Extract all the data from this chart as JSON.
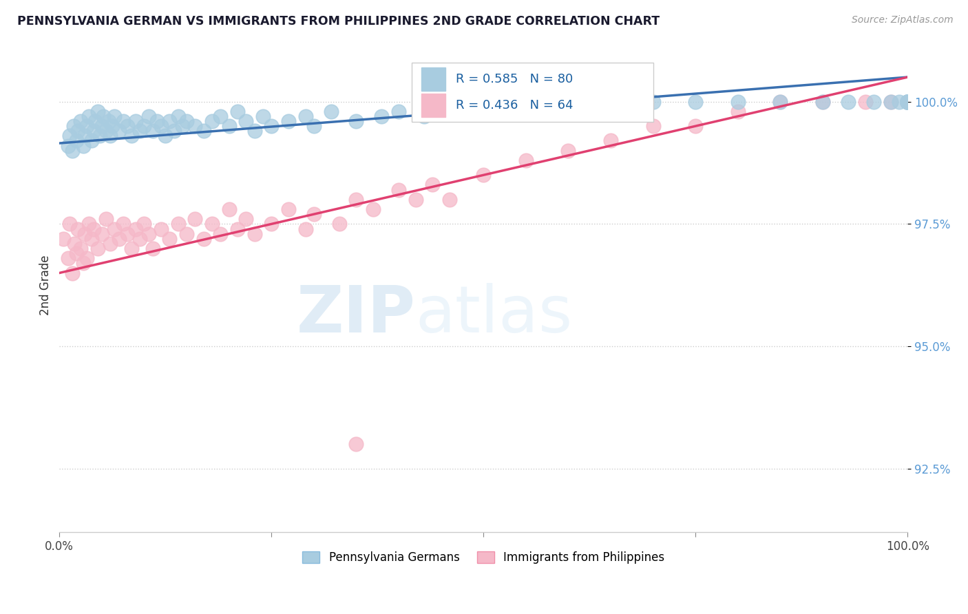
{
  "title": "PENNSYLVANIA GERMAN VS IMMIGRANTS FROM PHILIPPINES 2ND GRADE CORRELATION CHART",
  "source": "Source: ZipAtlas.com",
  "ylabel": "2nd Grade",
  "ylim": [
    91.2,
    101.3
  ],
  "xlim": [
    0.0,
    100.0
  ],
  "yticks": [
    92.5,
    95.0,
    97.5,
    100.0
  ],
  "ytick_labels": [
    "92.5%",
    "95.0%",
    "97.5%",
    "100.0%"
  ],
  "blue_R": 0.585,
  "blue_N": 80,
  "pink_R": 0.436,
  "pink_N": 64,
  "blue_color": "#a8cce0",
  "pink_color": "#f5b8c8",
  "blue_line_color": "#3a70b0",
  "pink_line_color": "#e04070",
  "legend1": "Pennsylvania Germans",
  "legend2": "Immigrants from Philippines",
  "blue_line_x0": 0,
  "blue_line_y0": 99.15,
  "blue_line_x1": 100,
  "blue_line_y1": 100.5,
  "pink_line_x0": 0,
  "pink_line_y0": 96.5,
  "pink_line_x1": 100,
  "pink_line_y1": 100.5,
  "blue_x": [
    1.0,
    1.2,
    1.5,
    1.7,
    2.0,
    2.2,
    2.5,
    2.8,
    3.0,
    3.2,
    3.5,
    3.8,
    4.0,
    4.2,
    4.5,
    4.8,
    5.0,
    5.2,
    5.5,
    5.8,
    6.0,
    6.2,
    6.5,
    7.0,
    7.5,
    8.0,
    8.5,
    9.0,
    9.5,
    10.0,
    10.5,
    11.0,
    11.5,
    12.0,
    12.5,
    13.0,
    13.5,
    14.0,
    14.5,
    15.0,
    16.0,
    17.0,
    18.0,
    19.0,
    20.0,
    21.0,
    22.0,
    23.0,
    24.0,
    25.0,
    27.0,
    29.0,
    30.0,
    32.0,
    35.0,
    38.0,
    40.0,
    43.0,
    46.0,
    50.0,
    55.0,
    60.0,
    65.0,
    70.0,
    75.0,
    80.0,
    85.0,
    90.0,
    93.0,
    96.0,
    98.0,
    99.0,
    100.0,
    100.0,
    100.0,
    100.0,
    100.0,
    100.0,
    100.0,
    100.0
  ],
  "blue_y": [
    99.1,
    99.3,
    99.0,
    99.5,
    99.2,
    99.4,
    99.6,
    99.1,
    99.3,
    99.5,
    99.7,
    99.2,
    99.4,
    99.6,
    99.8,
    99.3,
    99.5,
    99.7,
    99.4,
    99.6,
    99.3,
    99.5,
    99.7,
    99.4,
    99.6,
    99.5,
    99.3,
    99.6,
    99.4,
    99.5,
    99.7,
    99.4,
    99.6,
    99.5,
    99.3,
    99.6,
    99.4,
    99.7,
    99.5,
    99.6,
    99.5,
    99.4,
    99.6,
    99.7,
    99.5,
    99.8,
    99.6,
    99.4,
    99.7,
    99.5,
    99.6,
    99.7,
    99.5,
    99.8,
    99.6,
    99.7,
    99.8,
    99.7,
    99.8,
    99.9,
    99.9,
    100.0,
    99.9,
    100.0,
    100.0,
    100.0,
    100.0,
    100.0,
    100.0,
    100.0,
    100.0,
    100.0,
    100.0,
    100.0,
    100.0,
    100.0,
    100.0,
    100.0,
    100.0,
    100.0
  ],
  "pink_x": [
    0.5,
    1.0,
    1.2,
    1.5,
    1.8,
    2.0,
    2.2,
    2.5,
    2.8,
    3.0,
    3.2,
    3.5,
    3.8,
    4.0,
    4.5,
    5.0,
    5.5,
    6.0,
    6.5,
    7.0,
    7.5,
    8.0,
    8.5,
    9.0,
    9.5,
    10.0,
    10.5,
    11.0,
    12.0,
    13.0,
    14.0,
    15.0,
    16.0,
    17.0,
    18.0,
    19.0,
    20.0,
    21.0,
    22.0,
    23.0,
    25.0,
    27.0,
    29.0,
    30.0,
    33.0,
    35.0,
    37.0,
    40.0,
    42.0,
    44.0,
    46.0,
    50.0,
    55.0,
    60.0,
    65.0,
    70.0,
    75.0,
    80.0,
    85.0,
    90.0,
    95.0,
    98.0,
    100.0,
    35.0
  ],
  "pink_y": [
    97.2,
    96.8,
    97.5,
    96.5,
    97.1,
    96.9,
    97.4,
    97.0,
    96.7,
    97.3,
    96.8,
    97.5,
    97.2,
    97.4,
    97.0,
    97.3,
    97.6,
    97.1,
    97.4,
    97.2,
    97.5,
    97.3,
    97.0,
    97.4,
    97.2,
    97.5,
    97.3,
    97.0,
    97.4,
    97.2,
    97.5,
    97.3,
    97.6,
    97.2,
    97.5,
    97.3,
    97.8,
    97.4,
    97.6,
    97.3,
    97.5,
    97.8,
    97.4,
    97.7,
    97.5,
    98.0,
    97.8,
    98.2,
    98.0,
    98.3,
    98.0,
    98.5,
    98.8,
    99.0,
    99.2,
    99.5,
    99.5,
    99.8,
    100.0,
    100.0,
    100.0,
    100.0,
    100.0,
    93.0
  ]
}
